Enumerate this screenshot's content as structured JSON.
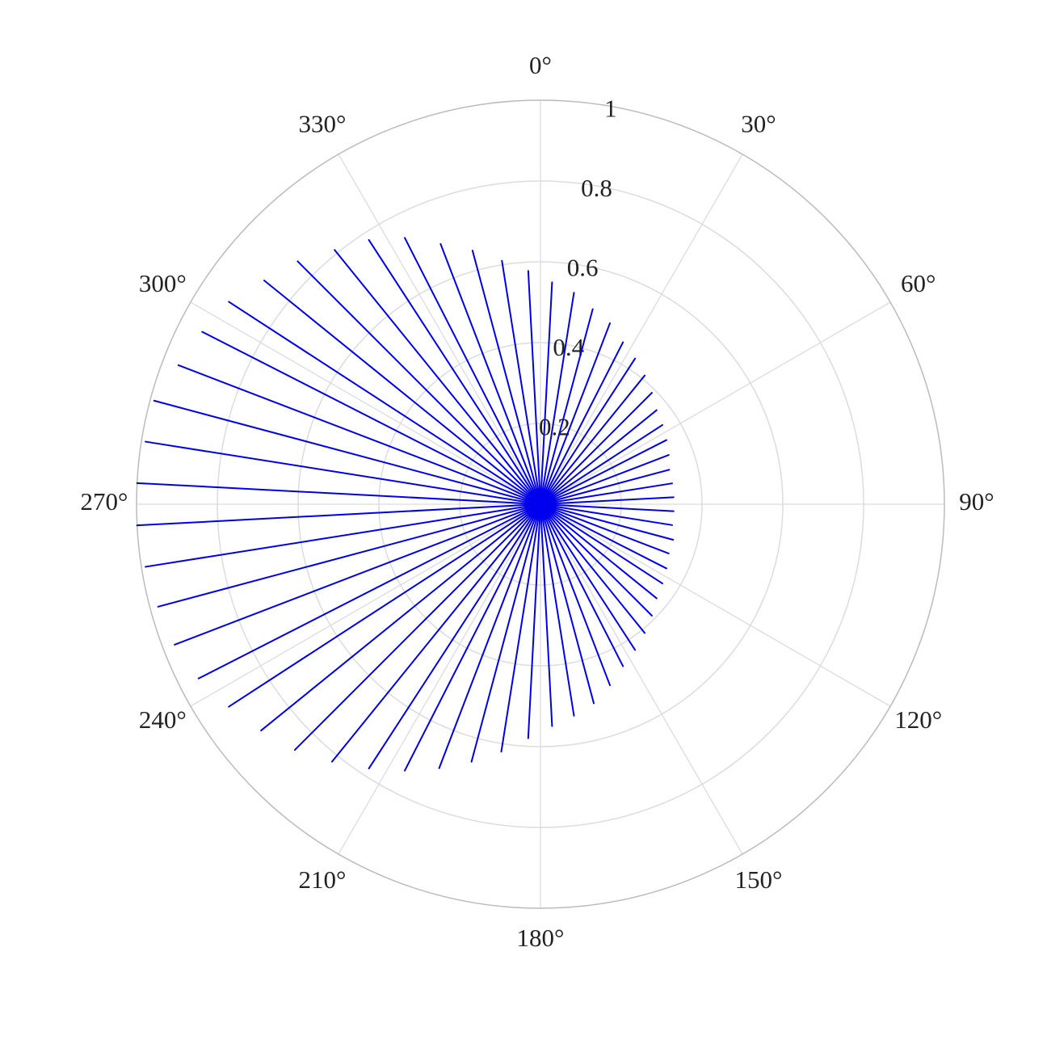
{
  "chart_data": {
    "type": "polar_line",
    "theta": [
      0,
      3,
      6,
      9,
      12,
      15,
      18,
      21,
      24,
      27,
      30,
      33,
      36,
      39,
      42,
      45,
      48,
      51,
      54,
      57,
      60,
      63,
      66,
      69,
      72,
      75,
      78,
      81,
      84,
      87,
      90,
      93,
      96,
      99,
      102,
      105,
      108,
      111,
      114,
      117,
      120,
      123,
      126,
      129,
      132,
      135,
      138,
      141,
      144,
      147,
      150,
      153,
      156,
      159,
      162,
      165,
      168,
      171,
      174,
      177,
      180,
      183,
      186,
      189,
      192,
      195,
      198,
      201,
      204,
      207,
      210,
      213,
      216,
      219,
      222,
      225,
      228,
      231,
      234,
      237,
      240,
      243,
      246,
      249,
      252,
      255,
      258,
      261,
      264,
      267,
      270,
      273,
      276,
      279,
      282,
      285,
      288,
      291,
      294,
      297,
      300,
      303,
      306,
      309,
      312,
      315,
      318,
      321,
      324,
      327,
      330,
      333,
      336,
      339,
      342,
      345,
      348,
      351,
      354,
      357
    ],
    "r": [
      0,
      0.55,
      0,
      0.53,
      0,
      0.5,
      0,
      0.48,
      0,
      0.45,
      0,
      0.43,
      0,
      0.41,
      0,
      0.39,
      0,
      0.37,
      0,
      0.36,
      0,
      0.35,
      0,
      0.34,
      0,
      0.33,
      0,
      0.33,
      0,
      0.33,
      0,
      0.33,
      0,
      0.33,
      0,
      0.34,
      0,
      0.34,
      0,
      0.35,
      0,
      0.36,
      0,
      0.37,
      0,
      0.39,
      0,
      0.41,
      0,
      0.43,
      0,
      0.45,
      0,
      0.48,
      0,
      0.51,
      0,
      0.53,
      0,
      0.55,
      0,
      0.58,
      0,
      0.62,
      0,
      0.66,
      0,
      0.7,
      0,
      0.74,
      0,
      0.78,
      0,
      0.82,
      0,
      0.86,
      0,
      0.89,
      0,
      0.92,
      0,
      0.95,
      0,
      0.97,
      0,
      0.98,
      0,
      0.99,
      0,
      1.0,
      0,
      1.0,
      0,
      0.99,
      0,
      0.99,
      0,
      0.96,
      0,
      0.94,
      0,
      0.92,
      0,
      0.88,
      0,
      0.85,
      0,
      0.81,
      0,
      0.78,
      0,
      0.74,
      0,
      0.69,
      0,
      0.65,
      0,
      0.61,
      0,
      0.58
    ],
    "color": "#0000ee",
    "rlim": [
      0,
      1
    ],
    "rticks": [
      0,
      0.2,
      0.4,
      0.6,
      0.8,
      1
    ],
    "thetaticks": [
      {
        "value": 0,
        "label": "0°"
      },
      {
        "value": 30,
        "label": "30°"
      },
      {
        "value": 60,
        "label": "60°"
      },
      {
        "value": 90,
        "label": "90°"
      },
      {
        "value": 120,
        "label": "120°"
      },
      {
        "value": 150,
        "label": "150°"
      },
      {
        "value": 180,
        "label": "180°"
      },
      {
        "value": 210,
        "label": "210°"
      },
      {
        "value": 240,
        "label": "240°"
      },
      {
        "value": 270,
        "label": "270°"
      },
      {
        "value": 300,
        "label": "300°"
      },
      {
        "value": 330,
        "label": "330°"
      }
    ],
    "grid": true
  }
}
